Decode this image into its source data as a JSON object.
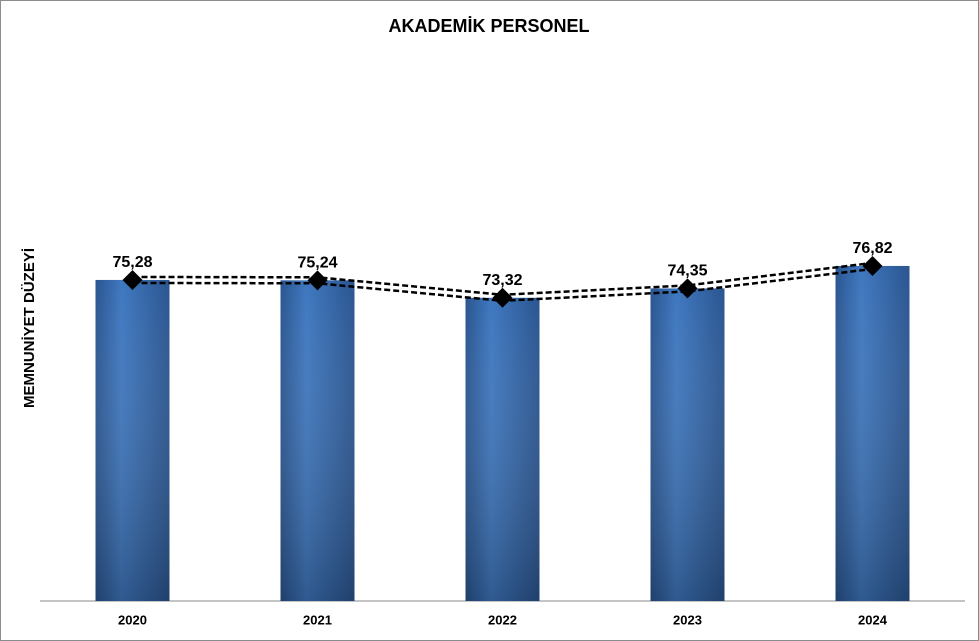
{
  "chart_data": {
    "type": "bar",
    "title": "AKADEMİK PERSONEL",
    "y_label": "MEMNUNİYET DÜZEYİ",
    "categories": [
      "2020",
      "2021",
      "2022",
      "2023",
      "2024"
    ],
    "values": [
      75.28,
      75.24,
      73.32,
      74.35,
      76.82
    ],
    "value_labels": [
      "75,28",
      "75,24",
      "73,32",
      "74,35",
      "76,82"
    ],
    "color": "#3a6fb5",
    "ylim": [
      40,
      100
    ],
    "line_overlay": true,
    "line_color": "#000000"
  }
}
